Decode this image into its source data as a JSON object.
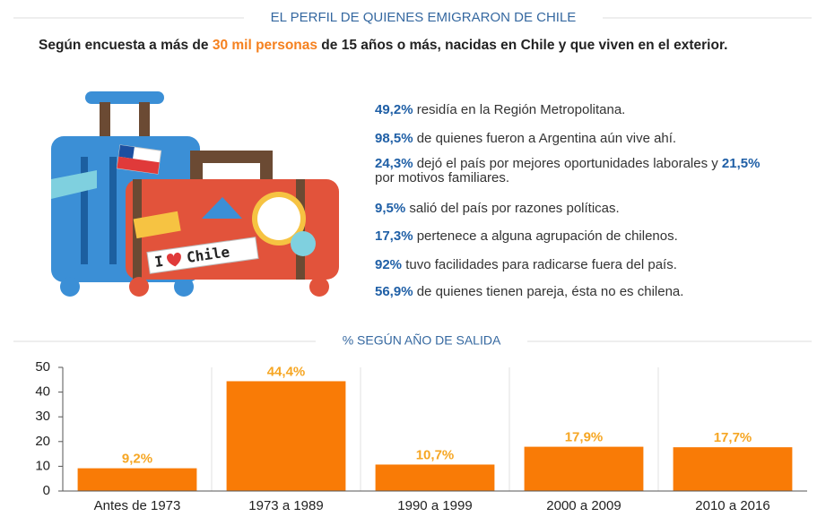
{
  "header": {
    "title": "EL PERFIL DE QUIENES EMIGRARON DE CHILE",
    "subtitle": [
      {
        "text": "Según encuesta a más de "
      },
      {
        "text": "30 mil personas",
        "highlight": true
      },
      {
        "text": " de 15 años o más, nacidas en Chile y que viven en el exterior."
      }
    ]
  },
  "sticker": {
    "left": "I",
    "right": "Chile"
  },
  "facts": [
    [
      {
        "text": "49,2%",
        "bold": true
      },
      {
        "text": " residía en la Región Metropolitana."
      }
    ],
    [
      {
        "text": "98,5%",
        "bold": true
      },
      {
        "text": " de quienes fueron a Argentina aún vive ahí."
      }
    ],
    [
      {
        "text": "24,3%",
        "bold": true
      },
      {
        "text": " dejó el país por mejores oportunidades laborales y "
      },
      {
        "text": "21,5%",
        "bold": true
      },
      {
        "text": " por motivos familiares."
      }
    ],
    [
      {
        "text": "9,5%",
        "bold": true
      },
      {
        "text": " salió del país por razones políticas."
      }
    ],
    [
      {
        "text": "17,3%",
        "bold": true
      },
      {
        "text": " pertenece a alguna agrupación de chilenos."
      }
    ],
    [
      {
        "text": "92%",
        "bold": true
      },
      {
        "text": " tuvo facilidades para radicarse fuera del país."
      }
    ],
    [
      {
        "text": "56,9%",
        "bold": true
      },
      {
        "text": " de quienes tienen pareja, ésta no es chilena."
      }
    ]
  ],
  "chart_data": {
    "type": "bar",
    "title": "% SEGÚN AÑO DE SALIDA",
    "categories": [
      "Antes de 1973",
      "1973 a 1989",
      "1990 a 1999",
      "2000 a 2009",
      "2010 a 2016"
    ],
    "values": [
      9.2,
      44.4,
      10.7,
      17.9,
      17.7
    ],
    "value_labels": [
      "9,2%",
      "44,4%",
      "10,7%",
      "17,9%",
      "17,7%"
    ],
    "color": "#f97b06",
    "label_color": "#f6a623",
    "ylim": [
      0,
      50
    ],
    "yticks": [
      0,
      10,
      20,
      30,
      40,
      50
    ],
    "grid": false
  }
}
